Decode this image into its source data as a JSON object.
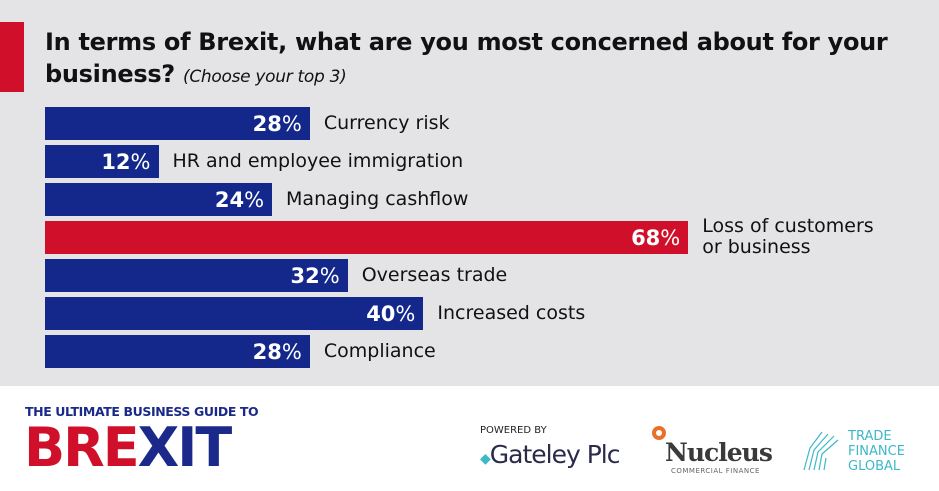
{
  "chart_data": {
    "type": "bar",
    "orientation": "horizontal",
    "title": "In terms of Brexit, what are you most concerned about for your business?",
    "subtitle": "(Choose your top 3)",
    "categories": [
      "Currency risk",
      "HR and employee immigration",
      "Managing cashflow",
      "Loss of customers or business",
      "Overseas trade",
      "Increased costs",
      "Compliance"
    ],
    "label_lines": [
      [
        "Currency risk"
      ],
      [
        "HR and employee immigration"
      ],
      [
        "Managing cashflow"
      ],
      [
        "Loss of customers",
        "or business"
      ],
      [
        "Overseas trade"
      ],
      [
        "Increased costs"
      ],
      [
        "Compliance"
      ]
    ],
    "values": [
      28,
      12,
      24,
      68,
      32,
      40,
      28
    ],
    "unit": "%",
    "highlight_index": 3,
    "colors": {
      "default": "#13288a",
      "highlight": "#d0102a"
    },
    "grid": false
  },
  "footer": {
    "guide_tagline": "THE ULTIMATE BUSINESS GUIDE TO",
    "brand": "BREXIT",
    "powered_by": "POWERED BY",
    "sponsors": [
      "Gateley Plc",
      "Nucleus",
      "COMMERCIAL FINANCE"
    ],
    "tfg_lines": [
      "TRADE",
      "FINANCE",
      "GLOBAL"
    ]
  }
}
